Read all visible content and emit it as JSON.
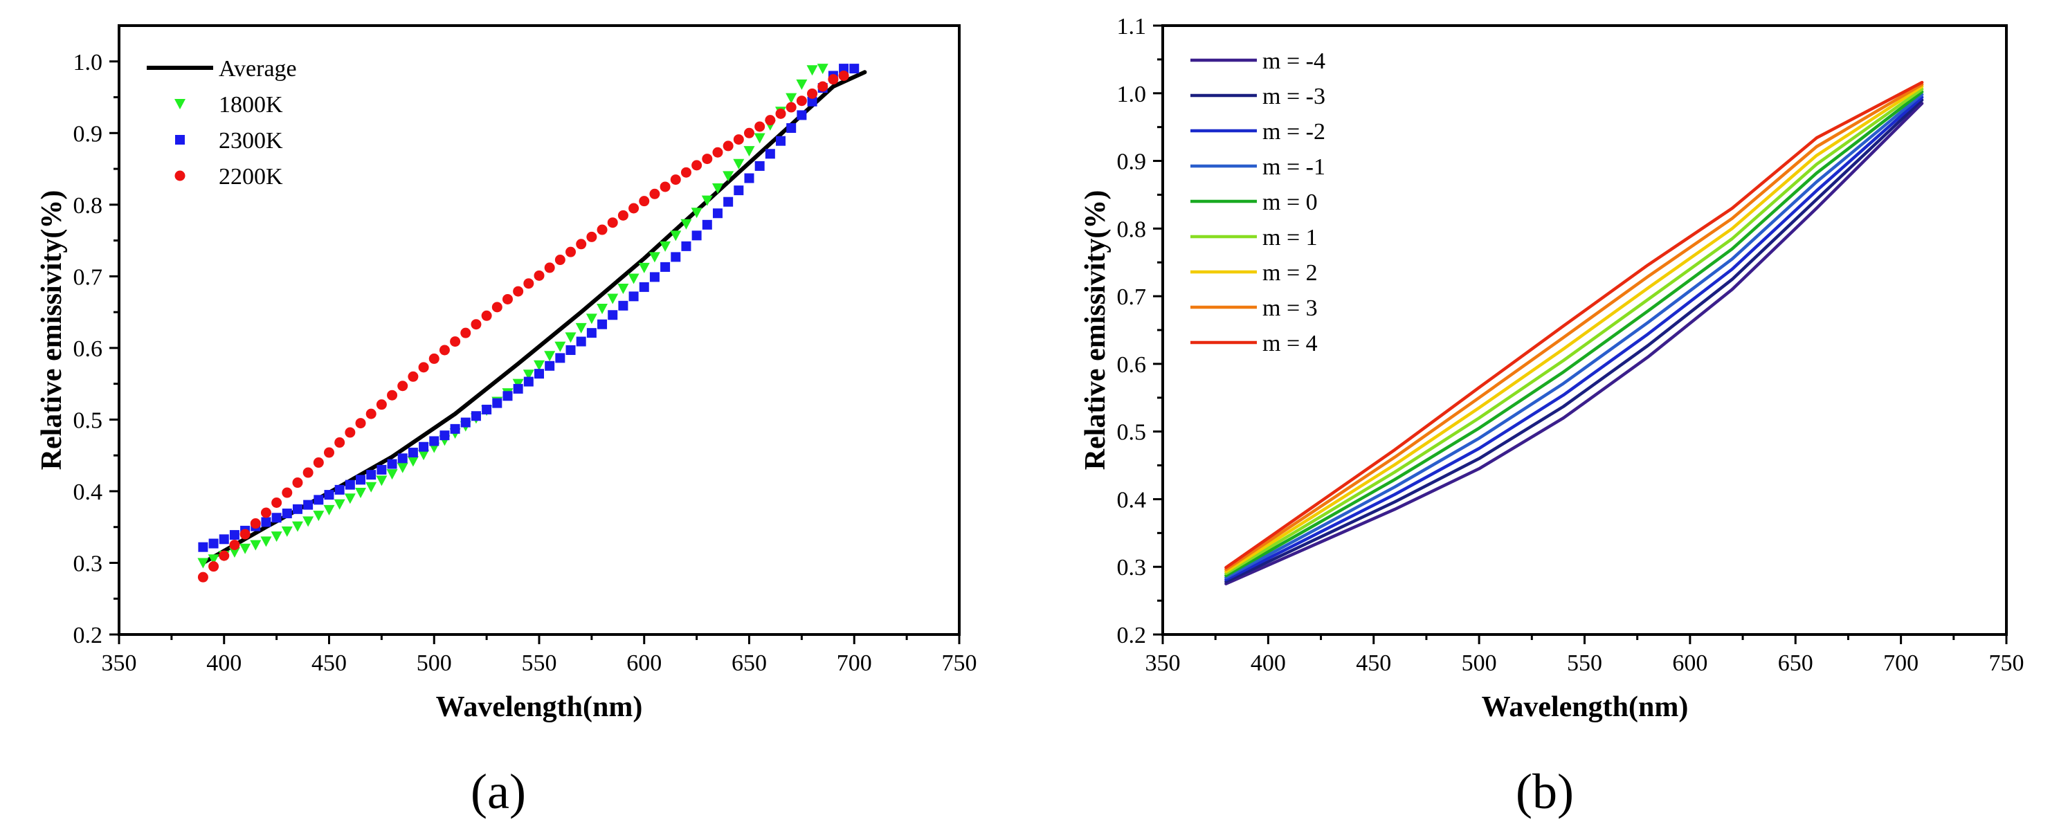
{
  "chart_data": [
    {
      "type": "line+scatter",
      "panel_label": "(a)",
      "xlabel": "Wavelength(nm)",
      "ylabel": "Relative emissivity(%)",
      "xlim": [
        350,
        750
      ],
      "ylim": [
        0.2,
        1.05
      ],
      "xticks": [
        350,
        400,
        450,
        500,
        550,
        600,
        650,
        700,
        750
      ],
      "yticks": [
        0.2,
        0.3,
        0.4,
        0.5,
        0.6,
        0.7,
        0.8,
        0.9,
        1.0
      ],
      "xtick_labels": [
        "350",
        "400",
        "450",
        "500",
        "550",
        "600",
        "650",
        "700",
        "750"
      ],
      "ytick_labels": [
        "0.2",
        "0.3",
        "0.4",
        "0.5",
        "0.6",
        "0.7",
        "0.8",
        "0.9",
        "1.0"
      ],
      "legend_position": "top-left",
      "series": [
        {
          "name": "Average",
          "style": "line",
          "color": "#000000",
          "x": [
            390,
            420,
            450,
            480,
            510,
            540,
            570,
            600,
            630,
            660,
            690,
            705
          ],
          "y": [
            0.3,
            0.35,
            0.398,
            0.448,
            0.508,
            0.578,
            0.65,
            0.725,
            0.805,
            0.885,
            0.965,
            0.985
          ]
        },
        {
          "name": "1800K",
          "style": "marker",
          "marker": "triangle-down",
          "color": "#22ee22",
          "x_start": 390,
          "x_step": 5,
          "y": [
            0.3,
            0.305,
            0.31,
            0.315,
            0.32,
            0.325,
            0.33,
            0.337,
            0.344,
            0.351,
            0.358,
            0.366,
            0.374,
            0.382,
            0.39,
            0.398,
            0.406,
            0.415,
            0.424,
            0.433,
            0.442,
            0.451,
            0.461,
            0.471,
            0.481,
            0.491,
            0.502,
            0.513,
            0.525,
            0.537,
            0.55,
            0.563,
            0.576,
            0.589,
            0.602,
            0.615,
            0.628,
            0.641,
            0.655,
            0.669,
            0.683,
            0.697,
            0.712,
            0.727,
            0.742,
            0.757,
            0.773,
            0.789,
            0.806,
            0.823,
            0.84,
            0.857,
            0.875,
            0.893,
            0.911,
            0.93,
            0.949,
            0.968,
            0.988,
            0.99
          ]
        },
        {
          "name": "2300K",
          "style": "marker",
          "marker": "square",
          "color": "#1a1aee",
          "x_start": 390,
          "x_step": 5,
          "y": [
            0.322,
            0.327,
            0.333,
            0.339,
            0.345,
            0.351,
            0.357,
            0.363,
            0.369,
            0.375,
            0.381,
            0.388,
            0.395,
            0.402,
            0.409,
            0.416,
            0.423,
            0.43,
            0.438,
            0.446,
            0.454,
            0.462,
            0.47,
            0.478,
            0.487,
            0.496,
            0.505,
            0.514,
            0.523,
            0.533,
            0.543,
            0.553,
            0.564,
            0.575,
            0.586,
            0.597,
            0.609,
            0.621,
            0.633,
            0.646,
            0.659,
            0.672,
            0.685,
            0.699,
            0.713,
            0.727,
            0.742,
            0.757,
            0.772,
            0.788,
            0.804,
            0.82,
            0.837,
            0.854,
            0.871,
            0.889,
            0.907,
            0.925,
            0.944,
            0.963,
            0.98,
            0.99,
            0.99
          ]
        },
        {
          "name": "2200K",
          "style": "marker",
          "marker": "circle",
          "color": "#ee1111",
          "x_start": 390,
          "x_step": 5,
          "y": [
            0.28,
            0.295,
            0.31,
            0.325,
            0.34,
            0.355,
            0.37,
            0.384,
            0.398,
            0.412,
            0.426,
            0.44,
            0.454,
            0.468,
            0.482,
            0.495,
            0.508,
            0.521,
            0.534,
            0.547,
            0.56,
            0.573,
            0.585,
            0.597,
            0.609,
            0.621,
            0.633,
            0.645,
            0.657,
            0.668,
            0.679,
            0.69,
            0.701,
            0.712,
            0.723,
            0.734,
            0.745,
            0.755,
            0.765,
            0.775,
            0.785,
            0.795,
            0.805,
            0.815,
            0.825,
            0.835,
            0.845,
            0.855,
            0.864,
            0.873,
            0.882,
            0.891,
            0.9,
            0.909,
            0.918,
            0.927,
            0.936,
            0.945,
            0.955,
            0.965,
            0.975,
            0.98
          ]
        }
      ]
    },
    {
      "type": "line",
      "panel_label": "(b)",
      "xlabel": "Wavelength(nm)",
      "ylabel": "Relative emissivity(%)",
      "xlim": [
        350,
        750
      ],
      "ylim": [
        0.2,
        1.1
      ],
      "xticks": [
        350,
        400,
        450,
        500,
        550,
        600,
        650,
        700,
        750
      ],
      "yticks": [
        0.2,
        0.3,
        0.4,
        0.5,
        0.6,
        0.7,
        0.8,
        0.9,
        1.0,
        1.1
      ],
      "xtick_labels": [
        "350",
        "400",
        "450",
        "500",
        "550",
        "600",
        "650",
        "700",
        "750"
      ],
      "ytick_labels": [
        "0.2",
        "0.3",
        "0.4",
        "0.5",
        "0.6",
        "0.7",
        "0.8",
        "0.9",
        "1.0",
        "1.1"
      ],
      "legend_position": "top-left",
      "x": [
        380,
        420,
        460,
        500,
        540,
        580,
        620,
        660,
        710
      ],
      "series": [
        {
          "name": "m = -4",
          "color": "#3b1f8c",
          "y": [
            0.275,
            0.33,
            0.385,
            0.445,
            0.52,
            0.61,
            0.71,
            0.83,
            0.985
          ]
        },
        {
          "name": "m = -3",
          "color": "#1a1f80",
          "y": [
            0.278,
            0.337,
            0.396,
            0.46,
            0.537,
            0.627,
            0.725,
            0.843,
            0.99
          ]
        },
        {
          "name": "m = -2",
          "color": "#1a2acc",
          "y": [
            0.281,
            0.344,
            0.407,
            0.475,
            0.554,
            0.644,
            0.74,
            0.856,
            0.994
          ]
        },
        {
          "name": "m = -1",
          "color": "#2a5ecc",
          "y": [
            0.284,
            0.351,
            0.418,
            0.49,
            0.571,
            0.661,
            0.755,
            0.869,
            0.998
          ]
        },
        {
          "name": "m = 0",
          "color": "#1aaa22",
          "y": [
            0.287,
            0.358,
            0.429,
            0.505,
            0.588,
            0.678,
            0.77,
            0.882,
            1.002
          ]
        },
        {
          "name": "m = 1",
          "color": "#88dd22",
          "y": [
            0.29,
            0.365,
            0.44,
            0.52,
            0.605,
            0.695,
            0.785,
            0.895,
            1.006
          ]
        },
        {
          "name": "m = 2",
          "color": "#f2cc00",
          "y": [
            0.293,
            0.372,
            0.451,
            0.535,
            0.622,
            0.712,
            0.8,
            0.908,
            1.01
          ]
        },
        {
          "name": "m = 3",
          "color": "#f07a10",
          "y": [
            0.296,
            0.379,
            0.462,
            0.55,
            0.639,
            0.729,
            0.815,
            0.921,
            1.013
          ]
        },
        {
          "name": "m = 4",
          "color": "#e82a10",
          "y": [
            0.299,
            0.386,
            0.473,
            0.565,
            0.656,
            0.746,
            0.83,
            0.934,
            1.016
          ]
        }
      ]
    }
  ]
}
